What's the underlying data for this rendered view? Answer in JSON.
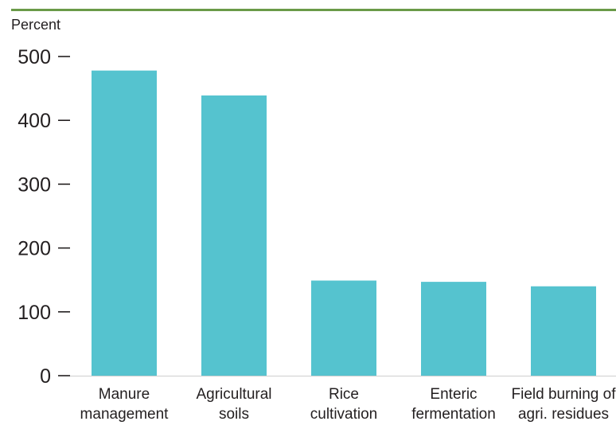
{
  "colors": {
    "rule": "#6a9a48",
    "bar": "#55c3cf",
    "axis": "#231f20"
  },
  "chart_data": {
    "type": "bar",
    "ylabel": "Percent",
    "ylim": [
      0,
      500
    ],
    "yticks": [
      0,
      100,
      200,
      300,
      400,
      500
    ],
    "grid": false,
    "categories": [
      [
        "Manure",
        "management"
      ],
      [
        "Agricultural",
        "soils"
      ],
      [
        "Rice",
        "cultivation"
      ],
      [
        "Enteric",
        "fermentation"
      ],
      [
        "Field burning of",
        "agri. residues"
      ]
    ],
    "values": [
      478,
      439,
      149,
      147,
      140
    ]
  }
}
